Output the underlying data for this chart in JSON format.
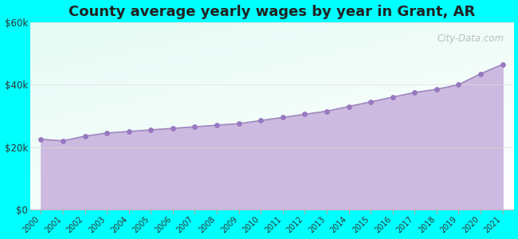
{
  "title": "County average yearly wages by year in Grant, AR",
  "years": [
    2000,
    2001,
    2002,
    2003,
    2004,
    2005,
    2006,
    2007,
    2008,
    2009,
    2010,
    2011,
    2012,
    2013,
    2014,
    2015,
    2016,
    2017,
    2018,
    2019,
    2020,
    2021
  ],
  "wages": [
    22500,
    22000,
    23500,
    24500,
    25000,
    25500,
    26000,
    26500,
    27000,
    27500,
    28500,
    29500,
    30500,
    31500,
    33000,
    34500,
    36000,
    37500,
    38500,
    40000,
    43500,
    46500
  ],
  "ylim": [
    0,
    60000
  ],
  "yticks": [
    0,
    20000,
    40000,
    60000
  ],
  "ytick_labels": [
    "$0",
    "$20k",
    "$40k",
    "$60k"
  ],
  "fill_color": "#c9b5de",
  "line_color": "#a088c0",
  "dot_color": "#9878c0",
  "bg_color_outer": "#00ffff",
  "title_fontsize": 13,
  "watermark": "City-Data.com"
}
